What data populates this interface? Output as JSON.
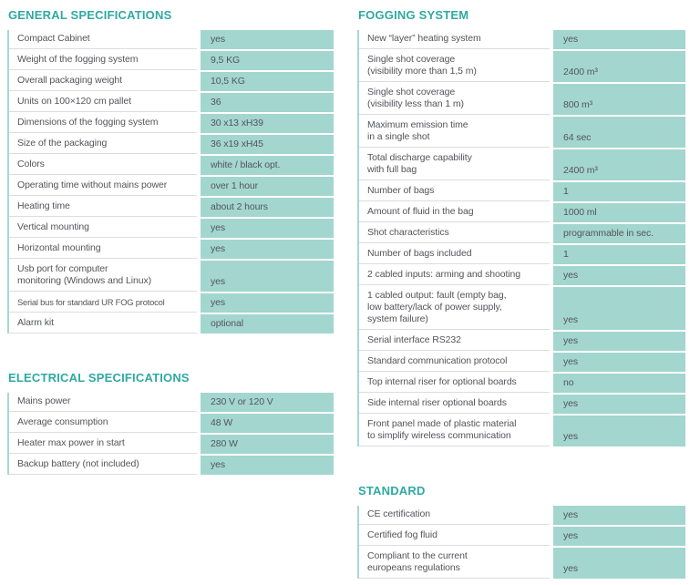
{
  "theme": {
    "accent": "#2fa9a3",
    "value_cell_bg": "#a3d6cf",
    "label_text": "#54555a",
    "row_border": "#dcdddd",
    "page_bg": "#ffffff"
  },
  "sections": [
    {
      "id": "general",
      "title": "GENERAL SPECIFICATIONS",
      "rows": [
        {
          "label": "Compact Cabinet",
          "value": "yes"
        },
        {
          "label": "Weight of the fogging system",
          "value": "9,5 KG"
        },
        {
          "label": "Overall packaging weight",
          "value": "10,5 KG"
        },
        {
          "label": "Units on 100×120 cm pallet",
          "value": "36"
        },
        {
          "label": "Dimensions of the fogging system",
          "value": "30 x13 xH39"
        },
        {
          "label": "Size of the packaging",
          "value": "36 x19 xH45"
        },
        {
          "label": "Colors",
          "value": "white / black opt."
        },
        {
          "label": "Operating time without mains power",
          "value": "over 1 hour"
        },
        {
          "label": "Heating time",
          "value": "about 2 hours"
        },
        {
          "label": "Vertical mounting",
          "value": "yes"
        },
        {
          "label": "Horizontal mounting",
          "value": "yes"
        },
        {
          "label": "Usb port for computer\nmonitoring (Windows and Linux)",
          "value": "yes"
        },
        {
          "label": "Serial bus for standard UR FOG protocol",
          "value": "yes"
        },
        {
          "label": "Alarm kit",
          "value": "optional"
        }
      ]
    },
    {
      "id": "electrical",
      "title": "ELECTRICAL SPECIFICATIONS",
      "rows": [
        {
          "label": "Mains power",
          "value": "230 V or 120 V"
        },
        {
          "label": "Average consumption",
          "value": "48 W"
        },
        {
          "label": "Heater max power in start",
          "value": "280 W"
        },
        {
          "label": "Backup battery (not included)",
          "value": "yes"
        }
      ]
    },
    {
      "id": "fogging",
      "title": "FOGGING SYSTEM",
      "rows": [
        {
          "label": "New “layer” heating system",
          "value": "yes"
        },
        {
          "label": "Single shot coverage\n(visibility more than 1,5 m)",
          "value": "2400 m³"
        },
        {
          "label": "Single shot coverage\n(visibility less than 1 m)",
          "value": "800 m³"
        },
        {
          "label": "Maximum emission time\nin a single shot",
          "value": "64 sec"
        },
        {
          "label": "Total discharge capability\nwith full bag",
          "value": "2400 m³"
        },
        {
          "label": "Number of bags",
          "value": "1"
        },
        {
          "label": "Amount of fluid in the bag",
          "value": "1000 ml"
        },
        {
          "label": "Shot characteristics",
          "value": "programmable in sec."
        },
        {
          "label": "Number of bags included",
          "value": "1"
        },
        {
          "label": "2 cabled inputs: arming and shooting",
          "value": "yes"
        },
        {
          "label": "1 cabled output: fault (empty bag,\nlow battery/lack of power supply,\nsystem failure)",
          "value": "yes"
        },
        {
          "label": "Serial interface RS232",
          "value": "yes"
        },
        {
          "label": "Standard communication protocol",
          "value": "yes"
        },
        {
          "label": "Top internal riser for optional boards",
          "value": "no"
        },
        {
          "label": "Side internal riser optional boards",
          "value": "yes"
        },
        {
          "label": "Front panel made of plastic material\nto simplify wireless communication",
          "value": "yes"
        }
      ]
    },
    {
      "id": "standard",
      "title": "STANDARD",
      "rows": [
        {
          "label": "CE certification",
          "value": "yes"
        },
        {
          "label": "Certified fog fluid",
          "value": "yes"
        },
        {
          "label": "Compliant to the current\neuropeans regulations",
          "value": "yes"
        }
      ]
    }
  ]
}
